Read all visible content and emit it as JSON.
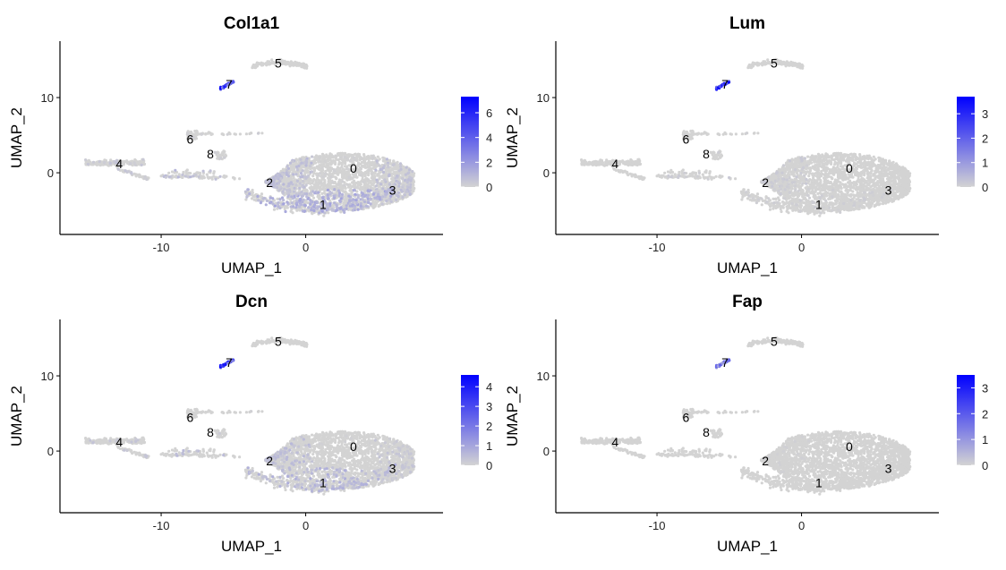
{
  "chart_data": [
    {
      "type": "scatter",
      "title": "Col1a1",
      "xlabel": "UMAP_1",
      "ylabel": "UMAP_2",
      "xlim": [
        -17,
        9.5
      ],
      "ylim": [
        -8.2,
        17.5
      ],
      "xticks": [
        -10,
        0
      ],
      "yticks": [
        0,
        10
      ],
      "legend": {
        "placement": "right",
        "range": [
          0,
          7.3
        ],
        "ticks": [
          0,
          2,
          4,
          6
        ],
        "low_color": "#d3d3d3",
        "high_color": "#0000ff"
      },
      "clusters": [
        {
          "label": "0",
          "x": 3.3,
          "y": 0.6
        },
        {
          "label": "1",
          "x": 1.2,
          "y": -4.2
        },
        {
          "label": "2",
          "x": -2.5,
          "y": -1.3
        },
        {
          "label": "3",
          "x": 6,
          "y": -2.3
        },
        {
          "label": "4",
          "x": -12.9,
          "y": 1.2
        },
        {
          "label": "5",
          "x": -1.9,
          "y": 14.6
        },
        {
          "label": "6",
          "x": -8,
          "y": 4.5
        },
        {
          "label": "7",
          "x": -5.3,
          "y": 11.8
        },
        {
          "label": "8",
          "x": -6.6,
          "y": 2.5
        }
      ],
      "expression": {
        "7": 6.5,
        "1": 1.4,
        "2": 0.8,
        "0": 0.1,
        "3": 0.7,
        "4": 0.5,
        "5": 0,
        "6": 0.2,
        "8": 0.3
      }
    },
    {
      "type": "scatter",
      "title": "Lum",
      "xlabel": "UMAP_1",
      "ylabel": "UMAP_2",
      "xlim": [
        -17,
        9.5
      ],
      "ylim": [
        -8.2,
        17.5
      ],
      "xticks": [
        -10,
        0
      ],
      "yticks": [
        0,
        10
      ],
      "legend": {
        "placement": "right",
        "range": [
          0,
          3.7
        ],
        "ticks": [
          0,
          1,
          2,
          3
        ],
        "low_color": "#d3d3d3",
        "high_color": "#0000ff"
      },
      "clusters": [
        {
          "label": "0",
          "x": 3.3,
          "y": 0.6
        },
        {
          "label": "1",
          "x": 1.2,
          "y": -4.2
        },
        {
          "label": "2",
          "x": -2.5,
          "y": -1.3
        },
        {
          "label": "3",
          "x": 6,
          "y": -2.3
        },
        {
          "label": "4",
          "x": -12.9,
          "y": 1.2
        },
        {
          "label": "5",
          "x": -1.9,
          "y": 14.6
        },
        {
          "label": "6",
          "x": -8,
          "y": 4.5
        },
        {
          "label": "7",
          "x": -5.3,
          "y": 11.8
        },
        {
          "label": "8",
          "x": -6.6,
          "y": 2.5
        }
      ],
      "expression": {
        "7": 3.2,
        "1": 0.1,
        "2": 0.15,
        "0": 0,
        "3": 0,
        "4": 0,
        "5": 0,
        "6": 0.05,
        "8": 0.1
      }
    },
    {
      "type": "scatter",
      "title": "Dcn",
      "xlabel": "UMAP_1",
      "ylabel": "UMAP_2",
      "xlim": [
        -17,
        9.5
      ],
      "ylim": [
        -8.2,
        17.5
      ],
      "xticks": [
        -10,
        0
      ],
      "yticks": [
        0,
        10
      ],
      "legend": {
        "placement": "right",
        "range": [
          0,
          4.6
        ],
        "ticks": [
          0,
          1,
          2,
          3,
          4
        ],
        "low_color": "#d3d3d3",
        "high_color": "#0000ff"
      },
      "clusters": [
        {
          "label": "0",
          "x": 3.3,
          "y": 0.6
        },
        {
          "label": "1",
          "x": 1.2,
          "y": -4.2
        },
        {
          "label": "2",
          "x": -2.5,
          "y": -1.3
        },
        {
          "label": "3",
          "x": 6,
          "y": -2.3
        },
        {
          "label": "4",
          "x": -12.9,
          "y": 1.2
        },
        {
          "label": "5",
          "x": -1.9,
          "y": 14.6
        },
        {
          "label": "6",
          "x": -8,
          "y": 4.5
        },
        {
          "label": "7",
          "x": -5.3,
          "y": 11.8
        },
        {
          "label": "8",
          "x": -6.6,
          "y": 2.5
        }
      ],
      "expression": {
        "7": 4.2,
        "1": 0.7,
        "2": 0.5,
        "0": 0.05,
        "3": 0.3,
        "4": 0.3,
        "5": 0,
        "6": 0.1,
        "8": 0.2
      }
    },
    {
      "type": "scatter",
      "title": "Fap",
      "xlabel": "UMAP_1",
      "ylabel": "UMAP_2",
      "xlim": [
        -17,
        9.5
      ],
      "ylim": [
        -8.2,
        17.5
      ],
      "xticks": [
        -10,
        0
      ],
      "yticks": [
        0,
        10
      ],
      "legend": {
        "placement": "right",
        "range": [
          0,
          3.5
        ],
        "ticks": [
          0,
          1,
          2,
          3
        ],
        "low_color": "#d3d3d3",
        "high_color": "#0000ff"
      },
      "clusters": [
        {
          "label": "0",
          "x": 3.3,
          "y": 0.6
        },
        {
          "label": "1",
          "x": 1.2,
          "y": -4.2
        },
        {
          "label": "2",
          "x": -2.5,
          "y": -1.3
        },
        {
          "label": "3",
          "x": 6,
          "y": -2.3
        },
        {
          "label": "4",
          "x": -12.9,
          "y": 1.2
        },
        {
          "label": "5",
          "x": -1.9,
          "y": 14.6
        },
        {
          "label": "6",
          "x": -8,
          "y": 4.5
        },
        {
          "label": "7",
          "x": -5.3,
          "y": 11.8
        },
        {
          "label": "8",
          "x": -6.6,
          "y": 2.5
        }
      ],
      "expression": {
        "7": 1.6,
        "1": 0,
        "2": 0.05,
        "0": 0,
        "3": 0,
        "4": 0,
        "5": 0,
        "6": 0,
        "8": 0
      }
    }
  ]
}
